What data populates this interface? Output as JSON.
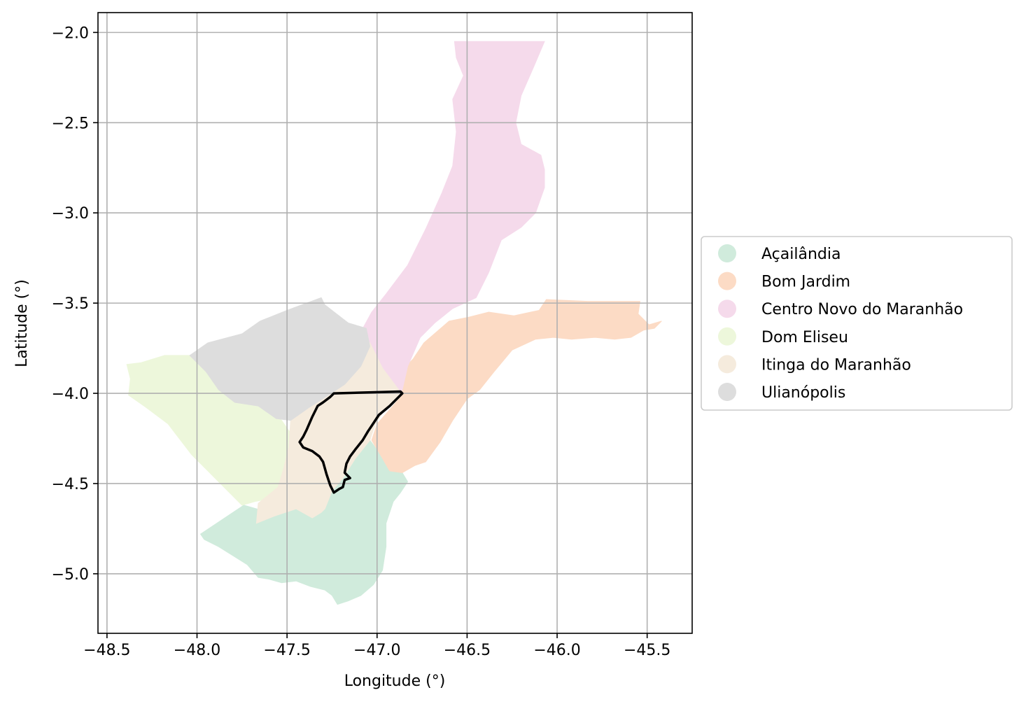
{
  "chart_data": {
    "type": "choropleth-map",
    "xlabel": "Longitude (°)",
    "ylabel": "Latitude (°)",
    "xlim": [
      -48.55,
      -45.25
    ],
    "ylim": [
      -5.33,
      -1.89
    ],
    "xticks": [
      -48.5,
      -48.0,
      -47.5,
      -47.0,
      -46.5,
      -46.0,
      -45.5
    ],
    "yticks": [
      -2.0,
      -2.5,
      -3.0,
      -3.5,
      -4.0,
      -4.5,
      -5.0
    ],
    "xtick_labels": [
      "−48.5",
      "−48.0",
      "−47.5",
      "−47.0",
      "−46.5",
      "−46.0",
      "−45.5"
    ],
    "ytick_labels": [
      "−2.0",
      "−2.5",
      "−3.0",
      "−3.5",
      "−4.0",
      "−4.5",
      "−5.0"
    ],
    "grid": true,
    "legend_position": "right",
    "regions": [
      {
        "name": "Açailândia",
        "color": "#d0ebdc",
        "polygon": [
          [
            -47.98,
            -4.78
          ],
          [
            -47.74,
            -4.62
          ],
          [
            -47.6,
            -4.66
          ],
          [
            -47.48,
            -4.64
          ],
          [
            -47.4,
            -4.64
          ],
          [
            -47.31,
            -4.64
          ],
          [
            -47.26,
            -4.54
          ],
          [
            -47.21,
            -4.48
          ],
          [
            -47.16,
            -4.41
          ],
          [
            -47.04,
            -4.26
          ],
          [
            -46.98,
            -4.34
          ],
          [
            -46.93,
            -4.42
          ],
          [
            -46.86,
            -4.44
          ],
          [
            -46.83,
            -4.49
          ],
          [
            -46.87,
            -4.55
          ],
          [
            -46.91,
            -4.6
          ],
          [
            -46.95,
            -4.72
          ],
          [
            -46.95,
            -4.85
          ],
          [
            -46.97,
            -4.98
          ],
          [
            -47.02,
            -5.06
          ],
          [
            -47.09,
            -5.12
          ],
          [
            -47.16,
            -5.15
          ],
          [
            -47.22,
            -5.17
          ],
          [
            -47.25,
            -5.12
          ],
          [
            -47.29,
            -5.09
          ],
          [
            -47.37,
            -5.07
          ],
          [
            -47.45,
            -5.04
          ],
          [
            -47.53,
            -5.05
          ],
          [
            -47.6,
            -5.03
          ],
          [
            -47.66,
            -5.02
          ],
          [
            -47.72,
            -4.95
          ],
          [
            -47.8,
            -4.9
          ],
          [
            -47.88,
            -4.85
          ],
          [
            -47.96,
            -4.81
          ]
        ]
      },
      {
        "name": "Bom Jardim",
        "color": "#fcdbc5",
        "polygon": [
          [
            -46.97,
            -4.36
          ],
          [
            -46.93,
            -4.43
          ],
          [
            -46.86,
            -4.44
          ],
          [
            -46.79,
            -4.4
          ],
          [
            -46.73,
            -4.38
          ],
          [
            -46.65,
            -4.27
          ],
          [
            -46.58,
            -4.15
          ],
          [
            -46.5,
            -4.03
          ],
          [
            -46.43,
            -3.98
          ],
          [
            -46.35,
            -3.88
          ],
          [
            -46.25,
            -3.76
          ],
          [
            -46.12,
            -3.7
          ],
          [
            -46.02,
            -3.69
          ],
          [
            -45.92,
            -3.7
          ],
          [
            -45.79,
            -3.69
          ],
          [
            -45.68,
            -3.7
          ],
          [
            -45.59,
            -3.69
          ],
          [
            -45.52,
            -3.65
          ],
          [
            -45.46,
            -3.64
          ],
          [
            -45.42,
            -3.6
          ],
          [
            -45.49,
            -3.62
          ],
          [
            -45.55,
            -3.56
          ],
          [
            -45.54,
            -3.49
          ],
          [
            -45.66,
            -3.49
          ],
          [
            -45.83,
            -3.49
          ],
          [
            -46.06,
            -3.48
          ],
          [
            -46.1,
            -3.54
          ],
          [
            -46.24,
            -3.57
          ],
          [
            -46.38,
            -3.55
          ],
          [
            -46.5,
            -3.58
          ],
          [
            -46.6,
            -3.6
          ],
          [
            -46.74,
            -3.72
          ],
          [
            -46.8,
            -3.81
          ],
          [
            -46.85,
            -3.86
          ],
          [
            -46.86,
            -3.93
          ],
          [
            -46.88,
            -3.99
          ],
          [
            -46.86,
            -4.01
          ],
          [
            -46.93,
            -4.09
          ],
          [
            -47.0,
            -4.17
          ],
          [
            -47.03,
            -4.26
          ]
        ]
      },
      {
        "name": "Centro Novo do Maranhão",
        "color": "#f5daeb",
        "polygon": [
          [
            -46.57,
            -2.05
          ],
          [
            -46.07,
            -2.05
          ],
          [
            -46.13,
            -2.19
          ],
          [
            -46.2,
            -2.35
          ],
          [
            -46.23,
            -2.5
          ],
          [
            -46.2,
            -2.62
          ],
          [
            -46.09,
            -2.68
          ],
          [
            -46.07,
            -2.76
          ],
          [
            -46.07,
            -2.86
          ],
          [
            -46.12,
            -3.0
          ],
          [
            -46.2,
            -3.08
          ],
          [
            -46.31,
            -3.15
          ],
          [
            -46.38,
            -3.33
          ],
          [
            -46.45,
            -3.47
          ],
          [
            -46.58,
            -3.53
          ],
          [
            -46.68,
            -3.61
          ],
          [
            -46.76,
            -3.69
          ],
          [
            -46.83,
            -3.85
          ],
          [
            -46.86,
            -3.98
          ],
          [
            -46.88,
            -4.0
          ],
          [
            -47.0,
            -3.93
          ],
          [
            -47.04,
            -3.8
          ],
          [
            -47.09,
            -3.66
          ],
          [
            -47.03,
            -3.55
          ],
          [
            -46.95,
            -3.45
          ],
          [
            -46.83,
            -3.29
          ],
          [
            -46.73,
            -3.09
          ],
          [
            -46.64,
            -2.89
          ],
          [
            -46.58,
            -2.74
          ],
          [
            -46.56,
            -2.55
          ],
          [
            -46.58,
            -2.37
          ],
          [
            -46.52,
            -2.24
          ],
          [
            -46.56,
            -2.14
          ]
        ]
      },
      {
        "name": "Dom Eliseu",
        "color": "#edf7db",
        "polygon": [
          [
            -48.39,
            -3.84
          ],
          [
            -48.31,
            -3.83
          ],
          [
            -48.18,
            -3.79
          ],
          [
            -48.04,
            -3.79
          ],
          [
            -47.94,
            -3.87
          ],
          [
            -47.86,
            -3.96
          ],
          [
            -47.76,
            -4.03
          ],
          [
            -47.63,
            -4.07
          ],
          [
            -47.53,
            -4.15
          ],
          [
            -47.46,
            -4.25
          ],
          [
            -47.5,
            -4.42
          ],
          [
            -47.58,
            -4.58
          ],
          [
            -47.68,
            -4.6
          ],
          [
            -47.75,
            -4.62
          ],
          [
            -47.89,
            -4.48
          ],
          [
            -48.03,
            -4.34
          ],
          [
            -48.16,
            -4.17
          ],
          [
            -48.28,
            -4.08
          ],
          [
            -48.38,
            -4.01
          ],
          [
            -48.37,
            -3.92
          ]
        ]
      },
      {
        "name": "Itinga do Maranhão",
        "color": "#f5ebdd",
        "polygon": [
          [
            -47.48,
            -4.15
          ],
          [
            -47.28,
            -4.02
          ],
          [
            -47.09,
            -3.83
          ],
          [
            -47.04,
            -3.72
          ],
          [
            -46.97,
            -3.86
          ],
          [
            -46.88,
            -3.98
          ],
          [
            -46.87,
            -4.02
          ],
          [
            -46.95,
            -4.08
          ],
          [
            -47.01,
            -4.17
          ],
          [
            -47.04,
            -4.26
          ],
          [
            -47.12,
            -4.36
          ],
          [
            -47.19,
            -4.47
          ],
          [
            -47.25,
            -4.54
          ],
          [
            -47.29,
            -4.64
          ],
          [
            -47.31,
            -4.66
          ],
          [
            -47.36,
            -4.69
          ],
          [
            -47.45,
            -4.64
          ],
          [
            -47.57,
            -4.68
          ],
          [
            -47.67,
            -4.72
          ],
          [
            -47.66,
            -4.61
          ],
          [
            -47.55,
            -4.52
          ],
          [
            -47.52,
            -4.42
          ],
          [
            -47.49,
            -4.3
          ]
        ]
      },
      {
        "name": "Ulianópolis",
        "color": "#dddddd",
        "polygon": [
          [
            -48.04,
            -3.79
          ],
          [
            -47.94,
            -3.72
          ],
          [
            -47.75,
            -3.67
          ],
          [
            -47.65,
            -3.6
          ],
          [
            -47.5,
            -3.54
          ],
          [
            -47.31,
            -3.47
          ],
          [
            -47.29,
            -3.51
          ],
          [
            -47.16,
            -3.61
          ],
          [
            -47.06,
            -3.64
          ],
          [
            -47.04,
            -3.74
          ],
          [
            -47.09,
            -3.85
          ],
          [
            -47.18,
            -3.95
          ],
          [
            -47.27,
            -4.01
          ],
          [
            -47.38,
            -4.08
          ],
          [
            -47.48,
            -4.15
          ],
          [
            -47.56,
            -4.14
          ],
          [
            -47.66,
            -4.07
          ],
          [
            -47.79,
            -4.05
          ],
          [
            -47.88,
            -3.98
          ],
          [
            -47.95,
            -3.88
          ]
        ]
      }
    ],
    "highlighted_boundary": {
      "color": "#000000",
      "polygon": [
        [
          -47.24,
          -4.0
        ],
        [
          -46.87,
          -3.99
        ],
        [
          -46.86,
          -4.0
        ],
        [
          -46.93,
          -4.07
        ],
        [
          -46.99,
          -4.12
        ],
        [
          -47.03,
          -4.18
        ],
        [
          -47.05,
          -4.21
        ],
        [
          -47.08,
          -4.26
        ],
        [
          -47.12,
          -4.31
        ],
        [
          -47.15,
          -4.35
        ],
        [
          -47.17,
          -4.39
        ],
        [
          -47.18,
          -4.44
        ],
        [
          -47.15,
          -4.47
        ],
        [
          -47.18,
          -4.48
        ],
        [
          -47.19,
          -4.52
        ],
        [
          -47.21,
          -4.53
        ],
        [
          -47.24,
          -4.55
        ],
        [
          -47.26,
          -4.51
        ],
        [
          -47.28,
          -4.45
        ],
        [
          -47.3,
          -4.38
        ],
        [
          -47.32,
          -4.35
        ],
        [
          -47.36,
          -4.32
        ],
        [
          -47.41,
          -4.3
        ],
        [
          -47.43,
          -4.27
        ],
        [
          -47.41,
          -4.24
        ],
        [
          -47.39,
          -4.2
        ],
        [
          -47.36,
          -4.13
        ],
        [
          -47.33,
          -4.07
        ],
        [
          -47.3,
          -4.05
        ],
        [
          -47.26,
          -4.02
        ]
      ]
    },
    "legend": [
      "Açailândia",
      "Bom Jardim",
      "Centro Novo do Maranhão",
      "Dom Eliseu",
      "Itinga do Maranhão",
      "Ulianópolis"
    ]
  }
}
